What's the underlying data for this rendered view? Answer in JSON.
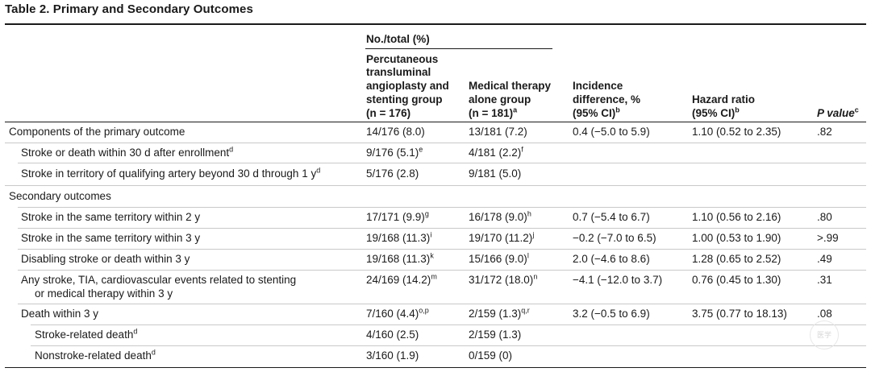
{
  "title": "Table 2. Primary and Secondary Outcomes",
  "header": {
    "group_label": "No./total (%)",
    "col_pta": [
      "Percutaneous",
      "transluminal",
      "angioplasty and",
      "stenting group",
      "(n = 176)"
    ],
    "col_med": [
      "Medical therapy",
      "alone group",
      "(n = 181)"
    ],
    "col_med_sup": "a",
    "col_inc": [
      "Incidence",
      "difference, %",
      "(95% CI)"
    ],
    "col_inc_sup": "b",
    "col_hr": [
      "Hazard ratio",
      "(95% CI)"
    ],
    "col_hr_sup": "b",
    "col_p": "P value",
    "col_p_sup": "c"
  },
  "rows": [
    {
      "label": "Components of the primary outcome",
      "label_sup": "",
      "pta": "14/176 (8.0)",
      "pta_sup": "",
      "med": "13/181 (7.2)",
      "med_sup": "",
      "inc": "0.4 (−5.0 to 5.9)",
      "hr": "1.10 (0.52 to 2.35)",
      "p": ".82"
    },
    {
      "label": "Stroke or death within 30 d after enrollment",
      "label_sup": "d",
      "pta": "9/176 (5.1)",
      "pta_sup": "e",
      "med": "4/181 (2.2)",
      "med_sup": "f",
      "inc": "",
      "hr": "",
      "p": ""
    },
    {
      "label": "Stroke in territory of qualifying artery beyond 30 d through 1 y",
      "label_sup": "d",
      "pta": "5/176 (2.8)",
      "pta_sup": "",
      "med": "9/181 (5.0)",
      "med_sup": "",
      "inc": "",
      "hr": "",
      "p": ""
    },
    {
      "label": "Secondary outcomes",
      "label_sup": "",
      "pta": "",
      "pta_sup": "",
      "med": "",
      "med_sup": "",
      "inc": "",
      "hr": "",
      "p": ""
    },
    {
      "label": "Stroke in the same territory within 2 y",
      "label_sup": "",
      "pta": "17/171 (9.9)",
      "pta_sup": "g",
      "med": "16/178 (9.0)",
      "med_sup": "h",
      "inc": "0.7 (−5.4 to 6.7)",
      "hr": "1.10 (0.56 to 2.16)",
      "p": ".80"
    },
    {
      "label": "Stroke in the same territory within 3 y",
      "label_sup": "",
      "pta": "19/168 (11.3)",
      "pta_sup": "i",
      "med": "19/170 (11.2)",
      "med_sup": "j",
      "inc": "−0.2 (−7.0 to 6.5)",
      "hr": "1.00 (0.53 to 1.90)",
      "p": ">.99"
    },
    {
      "label": "Disabling stroke or death within 3 y",
      "label_sup": "",
      "pta": "19/168 (11.3)",
      "pta_sup": "k",
      "med": "15/166 (9.0)",
      "med_sup": "l",
      "inc": "2.0 (−4.6 to 8.6)",
      "hr": "1.28 (0.65 to 2.52)",
      "p": ".49"
    },
    {
      "label": "Any stroke, TIA, cardiovascular events related to stenting",
      "label2": "or medical therapy within 3 y",
      "label_sup": "",
      "pta": "24/169 (14.2)",
      "pta_sup": "m",
      "med": "31/172 (18.0)",
      "med_sup": "n",
      "inc": "−4.1 (−12.0 to 3.7)",
      "hr": "0.76 (0.45 to 1.30)",
      "p": ".31"
    },
    {
      "label": "Death within 3 y",
      "label_sup": "",
      "pta": "7/160 (4.4)",
      "pta_sup": "o,p",
      "med": "2/159 (1.3)",
      "med_sup": "q,r",
      "inc": "3.2 (−0.5 to 6.9)",
      "hr": "3.75 (0.77 to 18.13)",
      "p": ".08"
    },
    {
      "label": "Stroke-related death",
      "label_sup": "d",
      "pta": "4/160 (2.5)",
      "pta_sup": "",
      "med": "2/159 (1.3)",
      "med_sup": "",
      "inc": "",
      "hr": "",
      "p": ""
    },
    {
      "label": "Nonstroke-related death",
      "label_sup": "d",
      "pta": "3/160 (1.9)",
      "pta_sup": "",
      "med": "0/159 (0)",
      "med_sup": "",
      "inc": "",
      "hr": "",
      "p": ""
    }
  ],
  "watermark": "医学"
}
